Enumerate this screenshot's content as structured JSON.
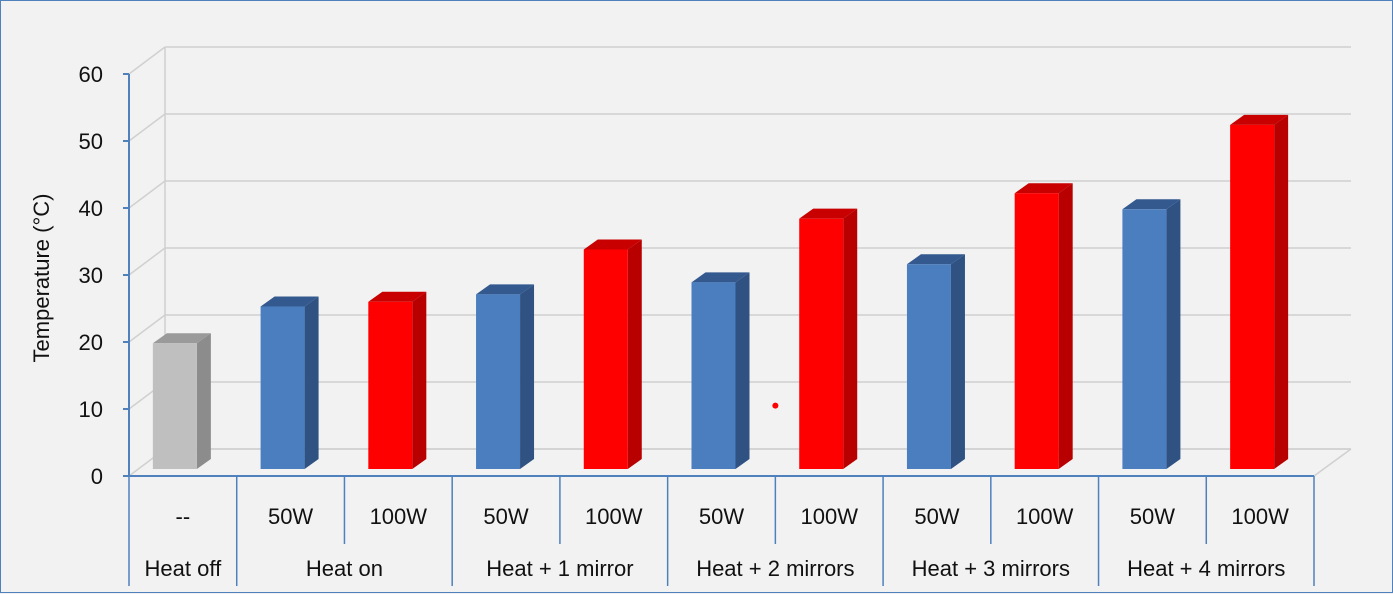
{
  "chart_data": {
    "type": "bar",
    "title": "",
    "ylabel": "Temperature (°C)",
    "xlabel": "",
    "ylim": [
      0,
      60
    ],
    "yticks": [
      0,
      10,
      20,
      30,
      40,
      50,
      60
    ],
    "grid": true,
    "groups": [
      {
        "name": "Heat off",
        "bars": [
          {
            "label": "--",
            "value": 21,
            "color": "gray"
          }
        ]
      },
      {
        "name": "Heat on",
        "bars": [
          {
            "label": "50W",
            "value": 26.5,
            "color": "blue"
          },
          {
            "label": "100W",
            "value": 27.2,
            "color": "red"
          }
        ]
      },
      {
        "name": "Heat + 1 mirror",
        "bars": [
          {
            "label": "50W",
            "value": 28.3,
            "color": "blue"
          },
          {
            "label": "100W",
            "value": 35,
            "color": "red"
          }
        ]
      },
      {
        "name": "Heat + 2 mirrors",
        "bars": [
          {
            "label": "50W",
            "value": 30.1,
            "color": "blue"
          },
          {
            "label": "100W",
            "value": 39.6,
            "color": "red"
          }
        ]
      },
      {
        "name": "Heat + 3 mirrors",
        "bars": [
          {
            "label": "50W",
            "value": 32.8,
            "color": "blue"
          },
          {
            "label": "100W",
            "value": 43.4,
            "color": "red"
          }
        ]
      },
      {
        "name": "Heat + 4 mirrors",
        "bars": [
          {
            "label": "50W",
            "value": 41,
            "color": "blue"
          },
          {
            "label": "100W",
            "value": 53.6,
            "color": "red"
          }
        ]
      }
    ],
    "annotations": [
      {
        "type": "dot",
        "color": "#ff0000",
        "x_between": [
          "Heat + 2 mirrors / 50W",
          "Heat + 2 mirrors / 100W"
        ],
        "y": 10.5
      }
    ]
  },
  "colors": {
    "gray": {
      "front": "#bfbfbf",
      "side": "#8c8c8c",
      "top": "#9a9a9a"
    },
    "blue": {
      "front": "#4a7ebf",
      "side": "#2f5283",
      "top": "#33598f"
    },
    "red": {
      "front": "#ff0000",
      "side": "#b80000",
      "top": "#c80000"
    },
    "axis": "#4f81bd",
    "grid": "#d0d0d0",
    "background": "#f2f2f2"
  }
}
